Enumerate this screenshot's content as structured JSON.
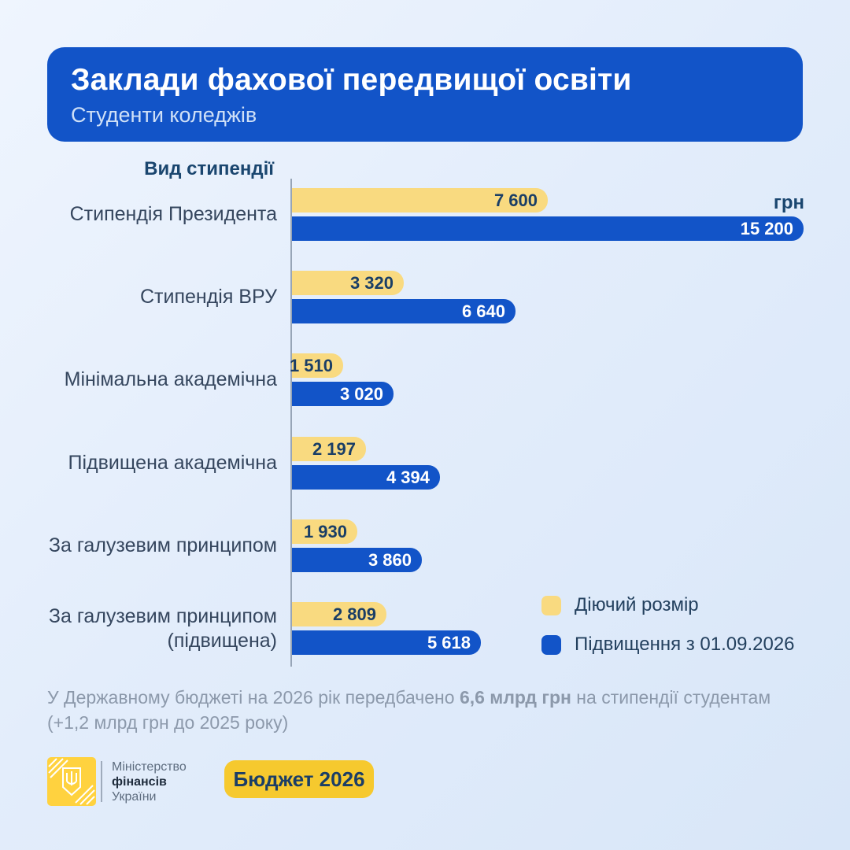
{
  "header": {
    "title": "Заклади фахової передвищої освіти",
    "subtitle": "Студенти коледжів"
  },
  "chart_data": {
    "type": "bar",
    "orientation": "horizontal",
    "axis_title": "Вид стипендії",
    "unit": "грн",
    "categories": [
      "Стипендія Президента",
      "Стипендія ВРУ",
      "Мінімальна академічна",
      "Підвищена академічна",
      "За галузевим принципом",
      "За галузевим принципом (підвищена)"
    ],
    "series": [
      {
        "name": "Діючий розмір",
        "color": "#F9DA80",
        "values": [
          7600,
          3320,
          1510,
          2197,
          1930,
          2809
        ]
      },
      {
        "name": "Підвищення з 01.09.2026",
        "color": "#1254C8",
        "values": [
          15200,
          6640,
          3020,
          4394,
          3860,
          5618
        ]
      }
    ],
    "xlim": [
      0,
      15200
    ],
    "value_labels": "inside-end",
    "grid": false,
    "legend_position": "bottom-right"
  },
  "note": {
    "part1": "У Державному бюджеті на 2026 рік передбачено ",
    "bold": "6,6 млрд грн",
    "part2": " на стипендії студентам",
    "line2": "(+1,2 млрд грн до 2025 року)"
  },
  "footer": {
    "ministry_lines": [
      "Міністерство",
      "фінансів",
      "України"
    ],
    "badge_label": "Бюджет 2026"
  },
  "colors": {
    "accent_blue": "#1254C8",
    "bar_yellow": "#F9DA80",
    "badge_yellow": "#F6C92E",
    "logo_yellow": "#FFD23F",
    "navy_text": "#1A3E66",
    "note_grey": "#8C99AB"
  }
}
